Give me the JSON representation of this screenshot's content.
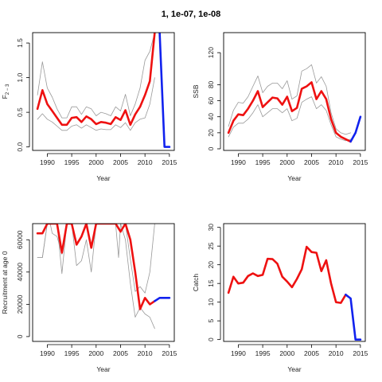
{
  "page": {
    "title": "1, 1e-07, 1e-08"
  },
  "chart_data": [
    {
      "type": "line",
      "xlabel": "Year",
      "ylabel": "F",
      "ylabel_sub": "2 − 3",
      "xlim": [
        1987,
        2016
      ],
      "ylim": [
        -0.05,
        1.65
      ],
      "xticks": [
        1990,
        1995,
        2000,
        2005,
        2010,
        2015
      ],
      "yticks": [
        0.0,
        0.5,
        1.0,
        1.5
      ],
      "ytick_labels": [
        "0.0",
        "0.5",
        "1.0",
        "1.5"
      ],
      "series": [
        {
          "role": "upper",
          "color": "#999999",
          "x": [
            1988,
            1989,
            1990,
            1991,
            1992,
            1993,
            1994,
            1995,
            1996,
            1997,
            1998,
            1999,
            2000,
            2001,
            2002,
            2003,
            2004,
            2005,
            2006,
            2007,
            2008,
            2009,
            2010,
            2011,
            2012
          ],
          "y": [
            0.75,
            1.23,
            0.85,
            0.72,
            0.55,
            0.42,
            0.42,
            0.58,
            0.58,
            0.47,
            0.58,
            0.55,
            0.45,
            0.5,
            0.48,
            0.45,
            0.58,
            0.52,
            0.76,
            0.45,
            0.62,
            0.85,
            1.25,
            1.38,
            1.65
          ]
        },
        {
          "role": "lower",
          "color": "#999999",
          "x": [
            1988,
            1989,
            1990,
            1991,
            1992,
            1993,
            1994,
            1995,
            1996,
            1997,
            1998,
            1999,
            2000,
            2001,
            2002,
            2003,
            2004,
            2005,
            2006,
            2007,
            2008,
            2009,
            2010,
            2011,
            2012
          ],
          "y": [
            0.4,
            0.48,
            0.4,
            0.36,
            0.3,
            0.24,
            0.24,
            0.3,
            0.32,
            0.27,
            0.32,
            0.28,
            0.24,
            0.26,
            0.25,
            0.25,
            0.32,
            0.28,
            0.35,
            0.24,
            0.35,
            0.4,
            0.42,
            0.62,
            1.0
          ]
        },
        {
          "role": "estimate",
          "color": "#ee1111",
          "x": [
            1988,
            1989,
            1990,
            1991,
            1992,
            1993,
            1994,
            1995,
            1996,
            1997,
            1998,
            1999,
            2000,
            2001,
            2002,
            2003,
            2004,
            2005,
            2006,
            2007,
            2008,
            2009,
            2010,
            2011,
            2012
          ],
          "y": [
            0.55,
            0.82,
            0.62,
            0.52,
            0.42,
            0.32,
            0.32,
            0.42,
            0.43,
            0.36,
            0.44,
            0.4,
            0.33,
            0.36,
            0.35,
            0.33,
            0.43,
            0.39,
            0.53,
            0.32,
            0.47,
            0.58,
            0.75,
            0.95,
            1.65
          ]
        },
        {
          "role": "projection",
          "color": "#1122ee",
          "x": [
            2013,
            2014,
            2015
          ],
          "y": [
            1.65,
            0.0,
            0.0
          ]
        }
      ]
    },
    {
      "type": "line",
      "xlabel": "Year",
      "ylabel": "SSB",
      "xlim": [
        1987,
        2016
      ],
      "ylim": [
        -2,
        145
      ],
      "xticks": [
        1990,
        1995,
        2000,
        2005,
        2010,
        2015
      ],
      "yticks": [
        0,
        20,
        40,
        60,
        80,
        120
      ],
      "ytick_labels": [
        "0",
        "20",
        "40",
        "60",
        "80",
        "120"
      ],
      "series": [
        {
          "role": "upper",
          "color": "#999999",
          "x": [
            1988,
            1989,
            1990,
            1991,
            1992,
            1993,
            1994,
            1995,
            1996,
            1997,
            1998,
            1999,
            2000,
            2001,
            2002,
            2003,
            2004,
            2005,
            2006,
            2007,
            2008,
            2009,
            2010,
            2011,
            2012,
            2013
          ],
          "y": [
            28,
            48,
            58,
            57,
            65,
            78,
            91,
            70,
            78,
            82,
            82,
            75,
            85,
            62,
            66,
            97,
            100,
            105,
            82,
            90,
            78,
            45,
            25,
            20,
            18,
            20
          ]
        },
        {
          "role": "lower",
          "color": "#999999",
          "x": [
            1988,
            1989,
            1990,
            1991,
            1992,
            1993,
            1994,
            1995,
            1996,
            1997,
            1998,
            1999,
            2000,
            2001,
            2002,
            2003,
            2004,
            2005,
            2006,
            2007,
            2008,
            2009,
            2010,
            2011,
            2012,
            2013
          ],
          "y": [
            15,
            27,
            32,
            32,
            37,
            45,
            55,
            40,
            45,
            50,
            50,
            45,
            50,
            35,
            38,
            58,
            62,
            65,
            50,
            55,
            48,
            30,
            15,
            12,
            10,
            12
          ]
        },
        {
          "role": "estimate",
          "color": "#ee1111",
          "x": [
            1988,
            1989,
            1990,
            1991,
            1992,
            1993,
            1994,
            1995,
            1996,
            1997,
            1998,
            1999,
            2000,
            2001,
            2002,
            2003,
            2004,
            2005,
            2006,
            2007,
            2008,
            2009,
            2010,
            2011,
            2012,
            2013
          ],
          "y": [
            20,
            35,
            43,
            42,
            50,
            60,
            72,
            52,
            58,
            64,
            63,
            55,
            65,
            47,
            51,
            75,
            78,
            83,
            62,
            72,
            62,
            37,
            20,
            15,
            12,
            9
          ]
        },
        {
          "role": "projection",
          "color": "#1122ee",
          "x": [
            2013,
            2014,
            2015
          ],
          "y": [
            9,
            20,
            40
          ]
        }
      ]
    },
    {
      "type": "line",
      "xlabel": "Year",
      "ylabel": "Recruitment at age 0",
      "xlim": [
        1987,
        2016
      ],
      "ylim": [
        -3000,
        70000
      ],
      "xticks": [
        1990,
        1995,
        2000,
        2005,
        2010,
        2015
      ],
      "yticks": [
        0,
        20000,
        40000,
        60000
      ],
      "ytick_labels": [
        "0",
        "20000",
        "40000",
        "60000"
      ],
      "series": [
        {
          "role": "upper",
          "color": "#999999",
          "x": [
            1988,
            1989,
            1990,
            1990.6,
            1991,
            1992,
            1993,
            1994,
            1995,
            1996,
            1997,
            1998,
            1999,
            2000,
            2001,
            2002,
            2003,
            2004,
            2005,
            2006,
            2007,
            2008,
            2009,
            2010,
            2011,
            2012
          ],
          "y": [
            49000,
            49000,
            70000,
            70000,
            64000,
            62000,
            51000,
            70000,
            70000,
            70000,
            70000,
            70000,
            70000,
            70000,
            70000,
            70000,
            70000,
            70000,
            70000,
            70000,
            48000,
            28000,
            31000,
            27000,
            40000,
            70000
          ]
        },
        {
          "role": "lower",
          "color": "#999999",
          "x": [
            1988,
            1989,
            1990,
            1991,
            1992,
            1993,
            1994,
            1995,
            1996,
            1997,
            1998,
            1999,
            2000,
            2001,
            2002,
            2003,
            2004,
            2004.6,
            2005,
            2006,
            2007,
            2008,
            2009,
            2010,
            2011,
            2012
          ],
          "y": [
            49000,
            49000,
            70000,
            70000,
            70000,
            39000,
            70000,
            70000,
            44000,
            47000,
            60000,
            40000,
            70000,
            70000,
            70000,
            70000,
            70000,
            49000,
            70000,
            60000,
            33000,
            12000,
            18000,
            14000,
            12000,
            5000
          ]
        },
        {
          "role": "estimate",
          "color": "#ee1111",
          "x": [
            1988,
            1989,
            1990,
            1991,
            1992,
            1993,
            1994,
            1995,
            1996,
            1997,
            1998,
            1999,
            2000,
            2001,
            2002,
            2003,
            2004,
            2005,
            2006,
            2007,
            2008,
            2009,
            2010,
            2011,
            2012
          ],
          "y": [
            64000,
            64000,
            70000,
            70000,
            70000,
            52000,
            70000,
            70000,
            57000,
            62000,
            70000,
            55000,
            70000,
            70000,
            70000,
            70000,
            70000,
            65000,
            70000,
            60000,
            40000,
            17000,
            24000,
            20000,
            22000
          ]
        },
        {
          "role": "projection",
          "color": "#1122ee",
          "x": [
            2012,
            2013,
            2014,
            2015
          ],
          "y": [
            22000,
            24000,
            24000,
            24000
          ]
        }
      ]
    },
    {
      "type": "line",
      "xlabel": "Year",
      "ylabel": "Catch",
      "xlim": [
        1987,
        2016
      ],
      "ylim": [
        -0.5,
        31
      ],
      "xticks": [
        1990,
        1995,
        2000,
        2005,
        2010,
        2015
      ],
      "yticks": [
        0,
        5,
        10,
        15,
        20,
        25,
        30
      ],
      "ytick_labels": [
        "0",
        "5",
        "10",
        "15",
        "20",
        "25",
        "30"
      ],
      "series": [
        {
          "role": "observed",
          "color": "#ee1111",
          "x": [
            1988,
            1989,
            1990,
            1991,
            1992,
            1993,
            1994,
            1995,
            1996,
            1997,
            1998,
            1999,
            2000,
            2001,
            2002,
            2003,
            2004,
            2005,
            2006,
            2007,
            2008,
            2009,
            2010,
            2011,
            2012
          ],
          "y": [
            12.5,
            16.8,
            15.0,
            15.2,
            17.0,
            17.7,
            17.0,
            17.3,
            21.6,
            21.5,
            20.3,
            16.8,
            15.5,
            14.0,
            16.2,
            18.8,
            24.8,
            23.4,
            23.2,
            18.3,
            21.2,
            15.0,
            10.0,
            9.8,
            12.0
          ]
        },
        {
          "role": "projection",
          "color": "#1122ee",
          "x": [
            2012,
            2013,
            2014,
            2015
          ],
          "y": [
            12.0,
            11.0,
            0.0,
            0.0
          ]
        }
      ]
    }
  ]
}
